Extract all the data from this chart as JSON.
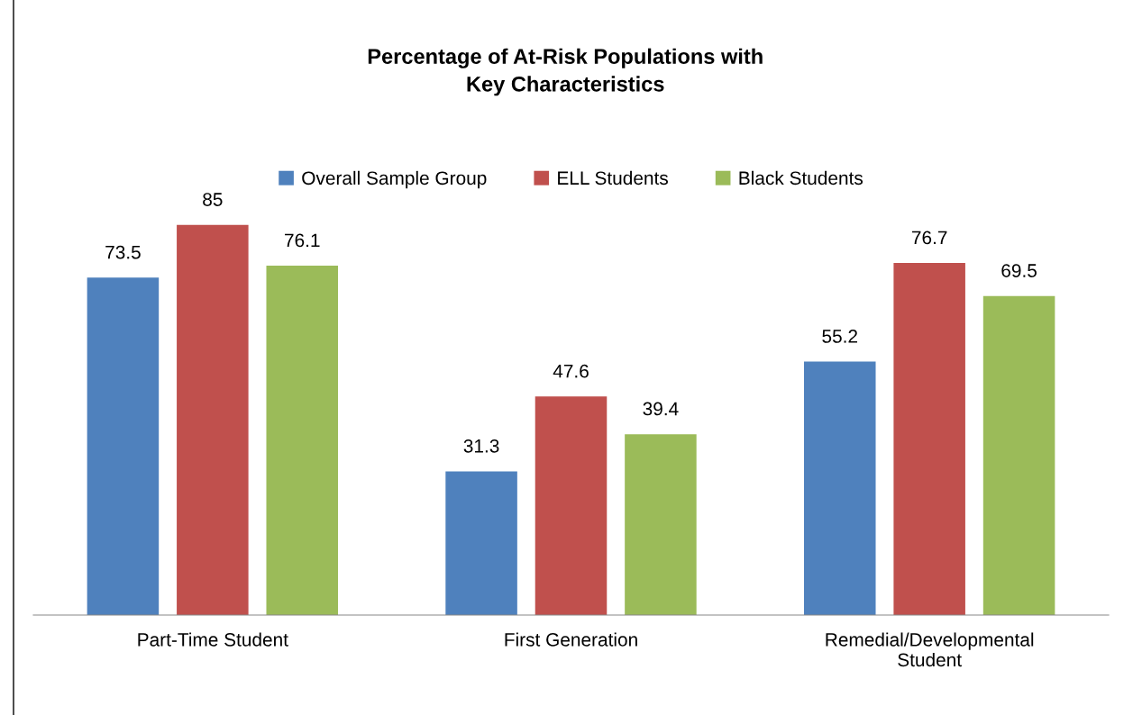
{
  "chart_data": {
    "type": "bar",
    "title": "Percentage of At-Risk Populations with\nKey Characteristics",
    "categories": [
      "Part-Time Student",
      "First Generation",
      "Remedial/Developmental\nStudent"
    ],
    "series": [
      {
        "name": "Overall Sample Group",
        "color": "#4f81bd",
        "values": [
          73.5,
          31.3,
          55.2
        ]
      },
      {
        "name": "ELL Students",
        "color": "#c0504d",
        "values": [
          85,
          47.6,
          76.7
        ]
      },
      {
        "name": "Black Students",
        "color": "#9bbb59",
        "values": [
          76.1,
          39.4,
          69.5
        ]
      }
    ],
    "data_labels": true,
    "legend": "top",
    "grid": false,
    "tick_labels": "x"
  }
}
